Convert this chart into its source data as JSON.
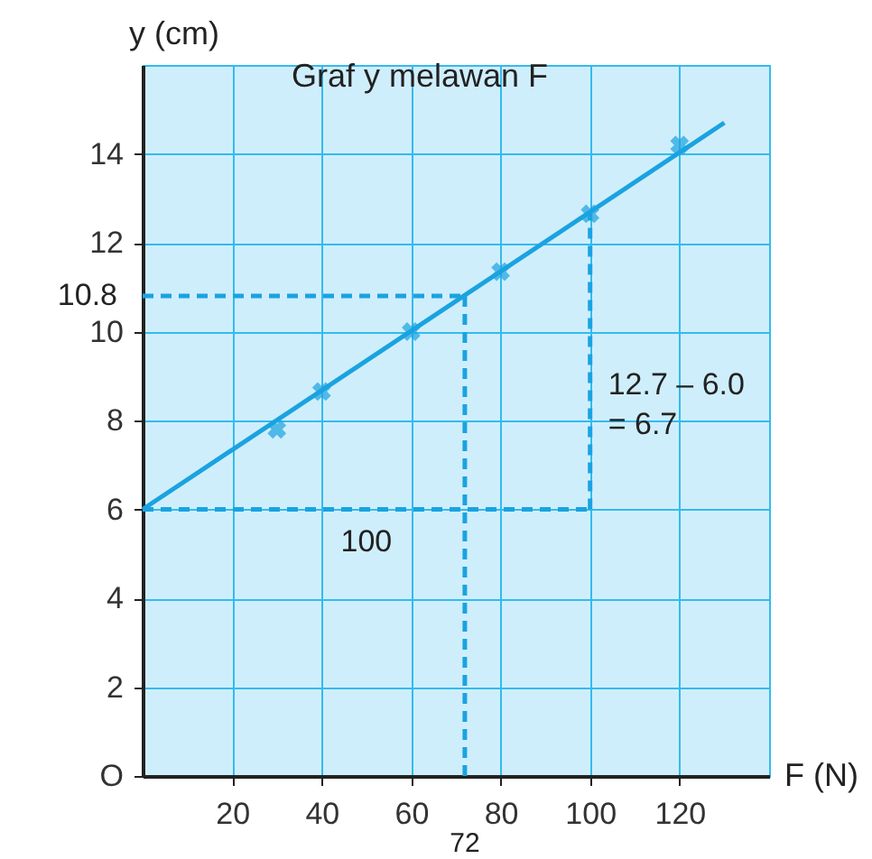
{
  "chart_data": {
    "type": "scatter",
    "title": "Graf y melawan F",
    "xlabel": "F (N)",
    "ylabel": "y (cm)",
    "xlim": [
      0,
      140
    ],
    "ylim": [
      0,
      16
    ],
    "xticks": [
      20,
      40,
      60,
      80,
      100,
      120
    ],
    "yticks": [
      {
        "value": 0,
        "label": "O"
      },
      2,
      4,
      6,
      8,
      10,
      12,
      14
    ],
    "grid": true,
    "marker": "cross",
    "series": [
      {
        "color": "#1aa3e0",
        "x": [
          30,
          40,
          60,
          80,
          100,
          120
        ],
        "values": [
          7.8,
          8.65,
          10.0,
          11.35,
          12.65,
          14.2
        ]
      },
      {
        "type": "line",
        "color": "#1aa3e0",
        "line_style": "solid",
        "marker": "none",
        "x": [
          0,
          130
        ],
        "values": [
          6.0,
          14.7
        ]
      },
      {
        "type": "line",
        "color": "#1aa3e0",
        "line_style": "dashed",
        "marker": "none",
        "x": [
          0,
          72
        ],
        "values": [
          10.8,
          10.8
        ]
      },
      {
        "type": "line",
        "color": "#1aa3e0",
        "line_style": "dashed",
        "marker": "none",
        "x": [
          72,
          72
        ],
        "values": [
          10.8,
          0
        ]
      },
      {
        "type": "line",
        "color": "#1aa3e0",
        "line_style": "dashed",
        "marker": "none",
        "x": [
          0,
          100
        ],
        "values": [
          6.0,
          6.0
        ]
      },
      {
        "type": "line",
        "color": "#1aa3e0",
        "line_style": "dashed",
        "marker": "none",
        "x": [
          100,
          100
        ],
        "values": [
          6.0,
          12.7
        ]
      }
    ],
    "annotations": [
      {
        "text": "10.8",
        "x": 0,
        "y": 10.8
      },
      {
        "text": "72",
        "x": 72,
        "y": 0
      },
      {
        "text": "100",
        "x": 50,
        "y": 6.0
      },
      {
        "text": "12.7 – 6.0\n= 6.7",
        "x": 100,
        "y": 8.8
      }
    ]
  }
}
